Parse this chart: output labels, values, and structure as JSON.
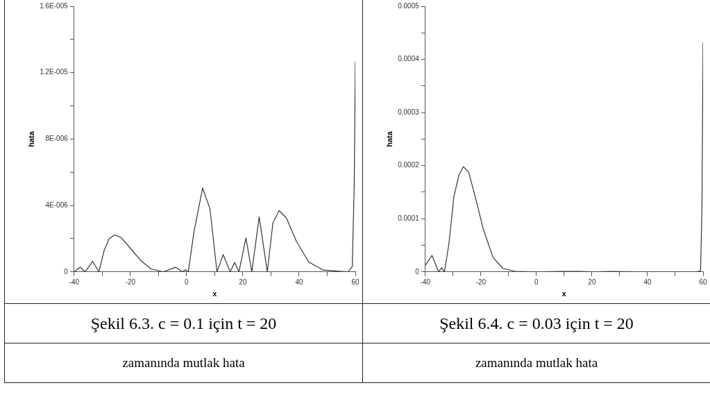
{
  "chart_data": [
    {
      "type": "line",
      "title": "Şekil 6.3.  c = 0.1 için t = 20",
      "subtitle": "zamanında mutlak hata",
      "xlabel": "x",
      "ylabel": "hata",
      "xlim": [
        -40,
        60
      ],
      "xticks": [
        -40,
        {
          "value": -30,
          "label": null
        },
        -20,
        {
          "value": -10,
          "label": null
        },
        0,
        {
          "value": 10,
          "label": null
        },
        20,
        {
          "value": 30,
          "label": null
        },
        40,
        {
          "value": 50,
          "label": null
        },
        60
      ],
      "ylim": [
        0,
        1.6e-05
      ],
      "yticks": [
        0,
        {
          "value": 2e-06,
          "label": null
        },
        {
          "value": 4e-06,
          "label": "4E-006"
        },
        {
          "value": 6e-06,
          "label": null
        },
        {
          "value": 8e-06,
          "label": "8E-006"
        },
        {
          "value": 1e-05,
          "label": null
        },
        {
          "value": 1.2e-05,
          "label": "1.2E-005"
        },
        {
          "value": 1.4e-05,
          "label": null
        },
        {
          "value": 1.6e-05,
          "label": "1.6E-005"
        }
      ],
      "series": [
        {
          "color": "#333333",
          "x": [
            -40,
            -37.8,
            -36.1,
            -33.4,
            -31.2,
            -29.3,
            -27.6,
            -25.6,
            -23.2,
            -19.7,
            -16.2,
            -12.7,
            -8.3,
            -3.9,
            -1.5,
            -0.4,
            0.6,
            2.6,
            5.7,
            8.3,
            10.8,
            13,
            15.5,
            17.1,
            18.6,
            21.1,
            23.2,
            25.8,
            28.7,
            30.7,
            32.9,
            35.5,
            39,
            43.4,
            48.6,
            57.4,
            58.9,
            59.6,
            60
          ],
          "values": [
            0,
            2.8e-07,
            0,
            6.3e-07,
            0,
            1.29e-06,
            1.99e-06,
            2.23e-06,
            2.06e-06,
            1.36e-06,
            6.7e-07,
            1.8e-07,
            0,
            2.8e-07,
            0,
            1.3e-07,
            0,
            2.4e-06,
            5.05e-06,
            3.8e-06,
            0,
            1.04e-06,
            0,
            5.7e-07,
            0,
            2.04e-06,
            0,
            3.31e-06,
            0,
            2.96e-06,
            3.69e-06,
            3.24e-06,
            1.85e-06,
            6e-07,
            1.1e-07,
            0,
            3.2e-07,
            5.2e-06,
            1.267e-05
          ]
        }
      ]
    },
    {
      "type": "line",
      "title": "Şekil 6.4. c = 0.03 için t = 20",
      "subtitle": "zamanında mutlak hata",
      "xlabel": "x",
      "ylabel": "hata",
      "xlim": [
        -40,
        60
      ],
      "xticks": [
        -40,
        {
          "value": -30,
          "label": null
        },
        -20,
        {
          "value": -10,
          "label": null
        },
        0,
        {
          "value": 10,
          "label": null
        },
        20,
        {
          "value": 30,
          "label": null
        },
        40,
        {
          "value": 50,
          "label": null
        },
        60
      ],
      "ylim": [
        0,
        0.0005
      ],
      "yticks": [
        0,
        {
          "value": 5e-05,
          "label": null
        },
        0.0001,
        {
          "value": 0.00015,
          "label": null
        },
        0.0002,
        {
          "value": 0.00025,
          "label": null
        },
        0.0003,
        {
          "value": 0.00035,
          "label": null
        },
        0.0004,
        {
          "value": 0.00045,
          "label": null
        },
        0.0005
      ],
      "series": [
        {
          "color": "#333333",
          "x": [
            -40,
            -37.6,
            -35.2,
            -34.1,
            -33.1,
            -31.5,
            -29.7,
            -27.9,
            -26.3,
            -24.4,
            -21.8,
            -19.1,
            -15.6,
            -12.1,
            -7.7,
            0,
            10,
            15.2,
            20.5,
            26.7,
            36.4,
            57.5,
            59.1,
            59.6,
            60
          ],
          "values": [
            1.24e-05,
            3.1e-05,
            0,
            8e-06,
            0,
            5.3e-05,
            0.000142,
            0.000182,
            0.000198,
            0.000188,
            0.000137,
            8e-05,
            2.7e-05,
            6.6e-06,
            1e-06,
            0,
            1e-06,
            1e-06,
            0,
            1e-06,
            0,
            0,
            2e-06,
            0.00012,
            0.000432
          ]
        }
      ]
    }
  ]
}
